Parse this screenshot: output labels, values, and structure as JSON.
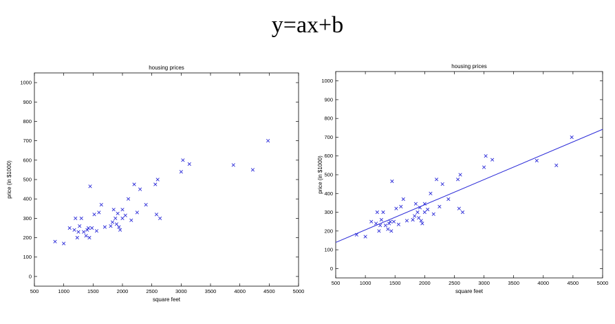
{
  "headline": "y=ax+b",
  "chart_data": [
    {
      "type": "scatter",
      "title": "housing prices",
      "xlabel": "square feet",
      "ylabel": "price (in $1000)",
      "xlim": [
        500,
        5000
      ],
      "ylim": [
        -50,
        1050
      ],
      "xticks": [
        500,
        1000,
        1500,
        2000,
        2500,
        3000,
        3500,
        4000,
        4500,
        5000
      ],
      "yticks": [
        0,
        100,
        200,
        300,
        400,
        500,
        600,
        700,
        800,
        900,
        1000
      ],
      "marker": "x",
      "color": "#2a2ad8",
      "grid": false,
      "series": [
        {
          "points": [
            [
              852,
              180
            ],
            [
              1000,
              170
            ],
            [
              1100,
              250
            ],
            [
              1180,
              240
            ],
            [
              1200,
              300
            ],
            [
              1230,
              200
            ],
            [
              1250,
              230
            ],
            [
              1270,
              260
            ],
            [
              1300,
              300
            ],
            [
              1340,
              230
            ],
            [
              1380,
              210
            ],
            [
              1400,
              240
            ],
            [
              1420,
              250
            ],
            [
              1437,
              200
            ],
            [
              1450,
              465
            ],
            [
              1480,
              250
            ],
            [
              1520,
              320
            ],
            [
              1560,
              235
            ],
            [
              1600,
              330
            ],
            [
              1640,
              370
            ],
            [
              1700,
              255
            ],
            [
              1800,
              260
            ],
            [
              1830,
              280
            ],
            [
              1850,
              345
            ],
            [
              1880,
              300
            ],
            [
              1900,
              270
            ],
            [
              1920,
              325
            ],
            [
              1940,
              255
            ],
            [
              1960,
              240
            ],
            [
              2000,
              300
            ],
            [
              2000,
              345
            ],
            [
              2050,
              315
            ],
            [
              2100,
              400
            ],
            [
              2150,
              290
            ],
            [
              2200,
              475
            ],
            [
              2250,
              330
            ],
            [
              2300,
              450
            ],
            [
              2400,
              370
            ],
            [
              2560,
              475
            ],
            [
              2580,
              320
            ],
            [
              2640,
              300
            ],
            [
              2600,
              500
            ],
            [
              3000,
              540
            ],
            [
              3030,
              600
            ],
            [
              3140,
              580
            ],
            [
              3890,
              575
            ],
            [
              4220,
              550
            ],
            [
              4480,
              700
            ]
          ]
        }
      ]
    },
    {
      "type": "scatter",
      "title": "housing prices",
      "xlabel": "square feet",
      "ylabel": "price (in $1000)",
      "xlim": [
        500,
        5000
      ],
      "ylim": [
        -50,
        1050
      ],
      "xticks": [
        500,
        1000,
        1500,
        2000,
        2500,
        3000,
        3500,
        4000,
        4500,
        5000
      ],
      "yticks": [
        0,
        100,
        200,
        300,
        400,
        500,
        600,
        700,
        800,
        900,
        1000
      ],
      "marker": "x",
      "color": "#2a2ad8",
      "grid": false,
      "series": [
        {
          "points": [
            [
              852,
              180
            ],
            [
              1000,
              170
            ],
            [
              1100,
              250
            ],
            [
              1180,
              240
            ],
            [
              1200,
              300
            ],
            [
              1230,
              200
            ],
            [
              1250,
              230
            ],
            [
              1270,
              260
            ],
            [
              1300,
              300
            ],
            [
              1340,
              230
            ],
            [
              1380,
              210
            ],
            [
              1400,
              240
            ],
            [
              1420,
              250
            ],
            [
              1437,
              200
            ],
            [
              1450,
              465
            ],
            [
              1480,
              250
            ],
            [
              1520,
              320
            ],
            [
              1560,
              235
            ],
            [
              1600,
              330
            ],
            [
              1640,
              370
            ],
            [
              1700,
              255
            ],
            [
              1800,
              260
            ],
            [
              1830,
              280
            ],
            [
              1850,
              345
            ],
            [
              1880,
              300
            ],
            [
              1900,
              270
            ],
            [
              1920,
              325
            ],
            [
              1940,
              255
            ],
            [
              1960,
              240
            ],
            [
              2000,
              300
            ],
            [
              2000,
              345
            ],
            [
              2050,
              315
            ],
            [
              2100,
              400
            ],
            [
              2150,
              290
            ],
            [
              2200,
              475
            ],
            [
              2250,
              330
            ],
            [
              2300,
              450
            ],
            [
              2400,
              370
            ],
            [
              2560,
              475
            ],
            [
              2580,
              320
            ],
            [
              2640,
              300
            ],
            [
              2600,
              500
            ],
            [
              3000,
              540
            ],
            [
              3030,
              600
            ],
            [
              3140,
              580
            ],
            [
              3890,
              575
            ],
            [
              4220,
              550
            ],
            [
              4480,
              700
            ]
          ]
        }
      ],
      "fit_line": {
        "slope": 0.134,
        "intercept": 72,
        "x": [
          500,
          5000
        ]
      }
    }
  ]
}
